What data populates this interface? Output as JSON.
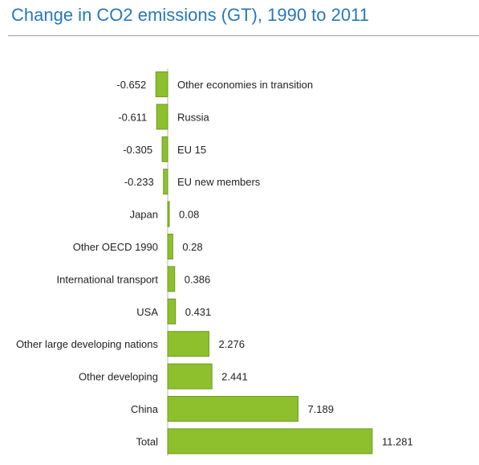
{
  "chart_data": {
    "type": "bar",
    "orientation": "horizontal",
    "title": "Change in CO2 emissions (GT), 1990 to 2011",
    "xlabel": "",
    "ylabel": "",
    "grid": false,
    "legend": "none",
    "bar_color": "#8ec02e",
    "bar_edge_color": "#6e9a1e",
    "title_color": "#2878b8",
    "categories": [
      "Other economies in transition",
      "Russia",
      "EU 15",
      "EU new members",
      "Japan",
      "Other OECD 1990",
      "International transport",
      "USA",
      "Other large developing nations",
      "Other developing",
      "China",
      "Total"
    ],
    "values": [
      -0.652,
      -0.611,
      -0.305,
      -0.233,
      0.08,
      0.28,
      0.386,
      0.431,
      2.276,
      2.441,
      7.189,
      11.281
    ],
    "value_labels": [
      "-0.652",
      "-0.611",
      "-0.305",
      "-0.233",
      "0.08",
      "0.28",
      "0.386",
      "0.431",
      "2.276",
      "2.441",
      "7.189",
      "11.281"
    ]
  }
}
